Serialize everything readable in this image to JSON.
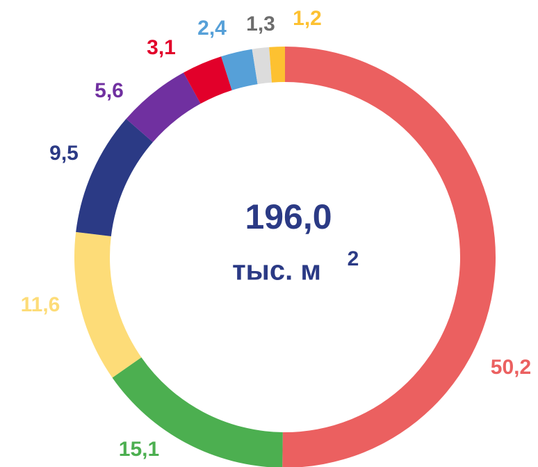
{
  "chart_data": {
    "type": "donut",
    "categories": [
      null,
      null,
      null,
      null,
      null,
      null,
      null,
      null,
      null
    ],
    "values": [
      50.2,
      15.1,
      11.6,
      9.5,
      5.6,
      3.1,
      2.4,
      1.3,
      1.2
    ],
    "value_labels": [
      "50,2",
      "15,1",
      "11,6",
      "9,5",
      "5,6",
      "3,1",
      "2,4",
      "1,3",
      "1,2"
    ],
    "colors": [
      "#eb6060",
      "#4caf50",
      "#fddc78",
      "#2b3a85",
      "#7030a0",
      "#e2002a",
      "#56a0d8",
      "#dcdcdc",
      "#fdc131"
    ],
    "label_colors": [
      "#eb6060",
      "#4caf50",
      "#fddc78",
      "#2b3a85",
      "#7030a0",
      "#e2002a",
      "#56a0d8",
      "#6d6d6d",
      "#fdc131"
    ],
    "center_value": "196,0",
    "center_unit": "тыс. м",
    "center_unit_sup": "2"
  }
}
